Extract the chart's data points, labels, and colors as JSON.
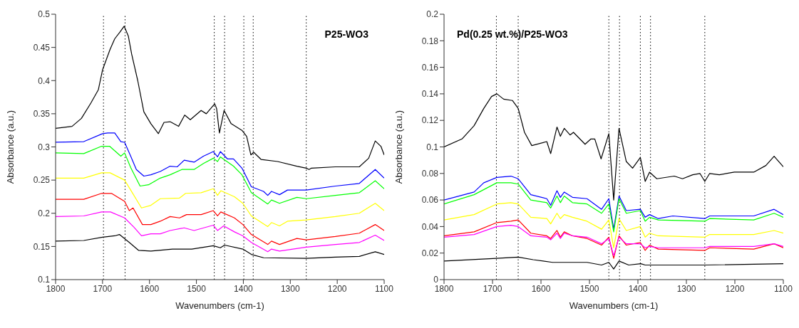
{
  "chart_data": [
    {
      "type": "line",
      "title": "P25-WO3",
      "xlabel": "Wavenumbers (cm-1)",
      "ylabel": "Absorbance (a.u.)",
      "xlim": [
        1800,
        1100
      ],
      "xticks": [
        1800,
        1700,
        1600,
        1500,
        1400,
        1300,
        1200,
        1100
      ],
      "ylim": [
        0.1,
        0.5
      ],
      "yticks": [
        0.1,
        0.15,
        0.2,
        0.25,
        0.3,
        0.35,
        0.4,
        0.45,
        0.5
      ],
      "marker": "none",
      "line_style": "solid",
      "ref_lines": [
        {
          "axis": "x",
          "value": 1698,
          "color": "#000000",
          "line_style": "dotted"
        },
        {
          "axis": "x",
          "value": 1652,
          "color": "#000000",
          "line_style": "dotted"
        },
        {
          "axis": "x",
          "value": 1462,
          "color": "#000000",
          "line_style": "dotted"
        },
        {
          "axis": "x",
          "value": 1440,
          "color": "#000000",
          "line_style": "dotted"
        },
        {
          "axis": "x",
          "value": 1399,
          "color": "#000000",
          "line_style": "dotted"
        },
        {
          "axis": "x",
          "value": 1379,
          "color": "#000000",
          "line_style": "dotted"
        },
        {
          "axis": "x",
          "value": 1266,
          "color": "#000000",
          "line_style": "dotted"
        }
      ],
      "series": [
        {
          "color": "#000000",
          "x": [
            1800,
            1765,
            1745,
            1725,
            1709,
            1700,
            1684,
            1674,
            1663,
            1654,
            1645,
            1638,
            1625,
            1612,
            1597,
            1581,
            1569,
            1556,
            1538,
            1525,
            1513,
            1490,
            1479,
            1461,
            1457,
            1451,
            1441,
            1426,
            1403,
            1393,
            1384,
            1378,
            1362,
            1327,
            1286,
            1266,
            1260,
            1255,
            1204,
            1153,
            1133,
            1119,
            1107,
            1100
          ],
          "values": [
            0.328,
            0.331,
            0.343,
            0.366,
            0.386,
            0.416,
            0.447,
            0.463,
            0.473,
            0.482,
            0.467,
            0.44,
            0.4,
            0.353,
            0.335,
            0.32,
            0.337,
            0.338,
            0.331,
            0.348,
            0.341,
            0.355,
            0.35,
            0.365,
            0.358,
            0.321,
            0.355,
            0.335,
            0.325,
            0.316,
            0.288,
            0.292,
            0.281,
            0.278,
            0.271,
            0.268,
            0.266,
            0.268,
            0.27,
            0.27,
            0.283,
            0.309,
            0.301,
            0.288
          ]
        },
        {
          "color": "#0000ff",
          "x": [
            1800,
            1740,
            1700,
            1689,
            1674,
            1661,
            1653,
            1640,
            1628,
            1612,
            1597,
            1577,
            1556,
            1541,
            1526,
            1505,
            1485,
            1464,
            1455,
            1449,
            1434,
            1421,
            1403,
            1383,
            1357,
            1348,
            1340,
            1323,
            1306,
            1266,
            1204,
            1153,
            1119,
            1100
          ],
          "values": [
            0.307,
            0.308,
            0.32,
            0.321,
            0.321,
            0.308,
            0.307,
            0.286,
            0.266,
            0.256,
            0.258,
            0.263,
            0.271,
            0.27,
            0.28,
            0.277,
            0.286,
            0.293,
            0.285,
            0.293,
            0.282,
            0.282,
            0.268,
            0.24,
            0.233,
            0.227,
            0.233,
            0.228,
            0.235,
            0.235,
            0.241,
            0.245,
            0.266,
            0.253
          ]
        },
        {
          "color": "#00ff00",
          "x": [
            1800,
            1740,
            1702,
            1685,
            1661,
            1653,
            1640,
            1620,
            1602,
            1577,
            1556,
            1531,
            1505,
            1485,
            1464,
            1455,
            1449,
            1421,
            1403,
            1383,
            1348,
            1340,
            1323,
            1286,
            1266,
            1204,
            1153,
            1119,
            1100
          ],
          "values": [
            0.291,
            0.29,
            0.301,
            0.301,
            0.286,
            0.291,
            0.269,
            0.241,
            0.243,
            0.253,
            0.258,
            0.266,
            0.266,
            0.275,
            0.283,
            0.278,
            0.285,
            0.271,
            0.258,
            0.231,
            0.214,
            0.22,
            0.215,
            0.224,
            0.222,
            0.227,
            0.231,
            0.249,
            0.237
          ]
        },
        {
          "color": "#ffff00",
          "x": [
            1800,
            1740,
            1702,
            1684,
            1653,
            1640,
            1617,
            1597,
            1577,
            1536,
            1523,
            1490,
            1464,
            1455,
            1448,
            1419,
            1401,
            1383,
            1348,
            1340,
            1323,
            1306,
            1266,
            1204,
            1153,
            1119,
            1100
          ],
          "values": [
            0.253,
            0.253,
            0.261,
            0.261,
            0.25,
            0.235,
            0.208,
            0.212,
            0.222,
            0.223,
            0.23,
            0.231,
            0.237,
            0.227,
            0.234,
            0.225,
            0.215,
            0.196,
            0.18,
            0.186,
            0.181,
            0.188,
            0.19,
            0.195,
            0.2,
            0.215,
            0.204
          ]
        },
        {
          "color": "#ff0000",
          "x": [
            1800,
            1740,
            1702,
            1681,
            1653,
            1643,
            1635,
            1615,
            1597,
            1577,
            1556,
            1536,
            1521,
            1490,
            1464,
            1455,
            1448,
            1419,
            1401,
            1383,
            1348,
            1340,
            1323,
            1286,
            1266,
            1204,
            1153,
            1119,
            1100
          ],
          "values": [
            0.221,
            0.221,
            0.23,
            0.23,
            0.218,
            0.204,
            0.208,
            0.183,
            0.183,
            0.188,
            0.195,
            0.193,
            0.198,
            0.198,
            0.204,
            0.196,
            0.202,
            0.193,
            0.183,
            0.168,
            0.153,
            0.158,
            0.153,
            0.162,
            0.16,
            0.165,
            0.17,
            0.183,
            0.174
          ]
        },
        {
          "color": "#ff00ff",
          "x": [
            1800,
            1740,
            1702,
            1683,
            1653,
            1633,
            1617,
            1597,
            1577,
            1556,
            1526,
            1505,
            1464,
            1455,
            1442,
            1419,
            1401,
            1383,
            1348,
            1340,
            1323,
            1266,
            1204,
            1153,
            1119,
            1100
          ],
          "values": [
            0.195,
            0.196,
            0.202,
            0.202,
            0.193,
            0.179,
            0.166,
            0.169,
            0.169,
            0.174,
            0.178,
            0.174,
            0.182,
            0.174,
            0.181,
            0.172,
            0.166,
            0.156,
            0.142,
            0.146,
            0.143,
            0.149,
            0.153,
            0.156,
            0.167,
            0.159
          ]
        },
        {
          "color": "#000000",
          "x": [
            1800,
            1740,
            1700,
            1674,
            1664,
            1643,
            1623,
            1597,
            1551,
            1510,
            1464,
            1449,
            1440,
            1401,
            1383,
            1357,
            1266,
            1204,
            1153,
            1119,
            1100
          ],
          "values": [
            0.158,
            0.159,
            0.164,
            0.166,
            0.168,
            0.156,
            0.144,
            0.143,
            0.146,
            0.146,
            0.151,
            0.148,
            0.152,
            0.146,
            0.138,
            0.133,
            0.132,
            0.134,
            0.135,
            0.142,
            0.138
          ]
        }
      ]
    },
    {
      "type": "line",
      "title": "Pd(0.25 wt.%)/P25-WO3",
      "xlabel": "Wavenumbers (cm-1)",
      "ylabel": "Absorbance (a.u.)",
      "xlim": [
        1800,
        1100
      ],
      "xticks": [
        1800,
        1700,
        1600,
        1500,
        1400,
        1300,
        1200,
        1100
      ],
      "ylim": [
        0,
        0.2
      ],
      "yticks": [
        0,
        0.02,
        0.04,
        0.06,
        0.08,
        0.1,
        0.12,
        0.14,
        0.16,
        0.18,
        0.2
      ],
      "marker": "none",
      "line_style": "solid",
      "ref_lines": [
        {
          "axis": "x",
          "value": 1692,
          "color": "#000000",
          "line_style": "dotted"
        },
        {
          "axis": "x",
          "value": 1647,
          "color": "#000000",
          "line_style": "dotted"
        },
        {
          "axis": "x",
          "value": 1460,
          "color": "#000000",
          "line_style": "dotted"
        },
        {
          "axis": "x",
          "value": 1438,
          "color": "#000000",
          "line_style": "dotted"
        },
        {
          "axis": "x",
          "value": 1395,
          "color": "#000000",
          "line_style": "dotted"
        },
        {
          "axis": "x",
          "value": 1374,
          "color": "#000000",
          "line_style": "dotted"
        },
        {
          "axis": "x",
          "value": 1262,
          "color": "#000000",
          "line_style": "dotted"
        }
      ],
      "series": [
        {
          "color": "#000000",
          "x": [
            1800,
            1763,
            1738,
            1718,
            1702,
            1691,
            1677,
            1659,
            1647,
            1634,
            1619,
            1588,
            1580,
            1567,
            1560,
            1552,
            1540,
            1533,
            1509,
            1497,
            1489,
            1476,
            1460,
            1450,
            1439,
            1424,
            1411,
            1395,
            1385,
            1376,
            1361,
            1325,
            1308,
            1287,
            1272,
            1262,
            1252,
            1232,
            1201,
            1161,
            1136,
            1119,
            1100
          ],
          "values": [
            0.1,
            0.106,
            0.116,
            0.129,
            0.138,
            0.14,
            0.136,
            0.135,
            0.129,
            0.111,
            0.101,
            0.104,
            0.095,
            0.115,
            0.108,
            0.114,
            0.109,
            0.111,
            0.102,
            0.106,
            0.106,
            0.091,
            0.11,
            0.06,
            0.114,
            0.089,
            0.084,
            0.092,
            0.074,
            0.081,
            0.076,
            0.078,
            0.076,
            0.079,
            0.08,
            0.074,
            0.08,
            0.079,
            0.081,
            0.081,
            0.086,
            0.093,
            0.085
          ]
        },
        {
          "color": "#0000ff",
          "x": [
            1800,
            1738,
            1718,
            1691,
            1662,
            1647,
            1621,
            1588,
            1580,
            1567,
            1560,
            1552,
            1535,
            1505,
            1475,
            1460,
            1450,
            1439,
            1424,
            1395,
            1385,
            1376,
            1358,
            1328,
            1262,
            1252,
            1161,
            1119,
            1100
          ],
          "values": [
            0.06,
            0.066,
            0.073,
            0.077,
            0.078,
            0.076,
            0.064,
            0.061,
            0.056,
            0.067,
            0.062,
            0.066,
            0.062,
            0.061,
            0.053,
            0.061,
            0.038,
            0.063,
            0.052,
            0.053,
            0.047,
            0.049,
            0.046,
            0.048,
            0.046,
            0.048,
            0.048,
            0.053,
            0.049
          ]
        },
        {
          "color": "#00ff00",
          "x": [
            1800,
            1738,
            1691,
            1662,
            1647,
            1621,
            1588,
            1580,
            1567,
            1560,
            1552,
            1535,
            1505,
            1475,
            1460,
            1450,
            1439,
            1424,
            1395,
            1385,
            1376,
            1358,
            1262,
            1252,
            1161,
            1119,
            1100
          ],
          "values": [
            0.057,
            0.064,
            0.073,
            0.073,
            0.072,
            0.06,
            0.058,
            0.054,
            0.063,
            0.058,
            0.063,
            0.058,
            0.057,
            0.05,
            0.057,
            0.036,
            0.061,
            0.05,
            0.052,
            0.044,
            0.047,
            0.045,
            0.044,
            0.046,
            0.045,
            0.05,
            0.047
          ]
        },
        {
          "color": "#ffff00",
          "x": [
            1800,
            1738,
            1691,
            1662,
            1647,
            1621,
            1588,
            1580,
            1567,
            1560,
            1552,
            1535,
            1505,
            1475,
            1460,
            1450,
            1439,
            1424,
            1395,
            1385,
            1376,
            1358,
            1262,
            1252,
            1161,
            1119,
            1100
          ],
          "values": [
            0.045,
            0.049,
            0.057,
            0.058,
            0.057,
            0.047,
            0.046,
            0.042,
            0.05,
            0.046,
            0.049,
            0.047,
            0.044,
            0.038,
            0.045,
            0.024,
            0.046,
            0.037,
            0.04,
            0.032,
            0.035,
            0.033,
            0.032,
            0.034,
            0.034,
            0.037,
            0.035
          ]
        },
        {
          "color": "#ff0000",
          "x": [
            1800,
            1738,
            1691,
            1662,
            1647,
            1621,
            1588,
            1580,
            1567,
            1560,
            1552,
            1535,
            1505,
            1475,
            1460,
            1450,
            1439,
            1424,
            1395,
            1385,
            1376,
            1358,
            1262,
            1252,
            1161,
            1119,
            1100
          ],
          "values": [
            0.033,
            0.036,
            0.043,
            0.044,
            0.045,
            0.035,
            0.033,
            0.031,
            0.037,
            0.032,
            0.036,
            0.033,
            0.031,
            0.026,
            0.032,
            0.016,
            0.033,
            0.026,
            0.028,
            0.022,
            0.026,
            0.023,
            0.022,
            0.024,
            0.023,
            0.027,
            0.024
          ]
        },
        {
          "color": "#ff00ff",
          "x": [
            1800,
            1738,
            1691,
            1662,
            1647,
            1621,
            1588,
            1580,
            1567,
            1560,
            1552,
            1535,
            1505,
            1475,
            1460,
            1450,
            1439,
            1424,
            1395,
            1385,
            1376,
            1358,
            1262,
            1252,
            1161,
            1119,
            1100
          ],
          "values": [
            0.032,
            0.034,
            0.04,
            0.041,
            0.04,
            0.033,
            0.032,
            0.03,
            0.035,
            0.031,
            0.035,
            0.033,
            0.032,
            0.027,
            0.031,
            0.018,
            0.032,
            0.027,
            0.027,
            0.024,
            0.025,
            0.024,
            0.024,
            0.025,
            0.025,
            0.027,
            0.025
          ]
        },
        {
          "color": "#000000",
          "x": [
            1800,
            1692,
            1647,
            1616,
            1576,
            1505,
            1475,
            1460,
            1450,
            1439,
            1419,
            1394,
            1385,
            1376,
            1262,
            1100
          ],
          "values": [
            0.014,
            0.016,
            0.017,
            0.015,
            0.013,
            0.013,
            0.011,
            0.013,
            0.008,
            0.014,
            0.011,
            0.012,
            0.011,
            0.011,
            0.011,
            0.012
          ]
        }
      ]
    }
  ]
}
